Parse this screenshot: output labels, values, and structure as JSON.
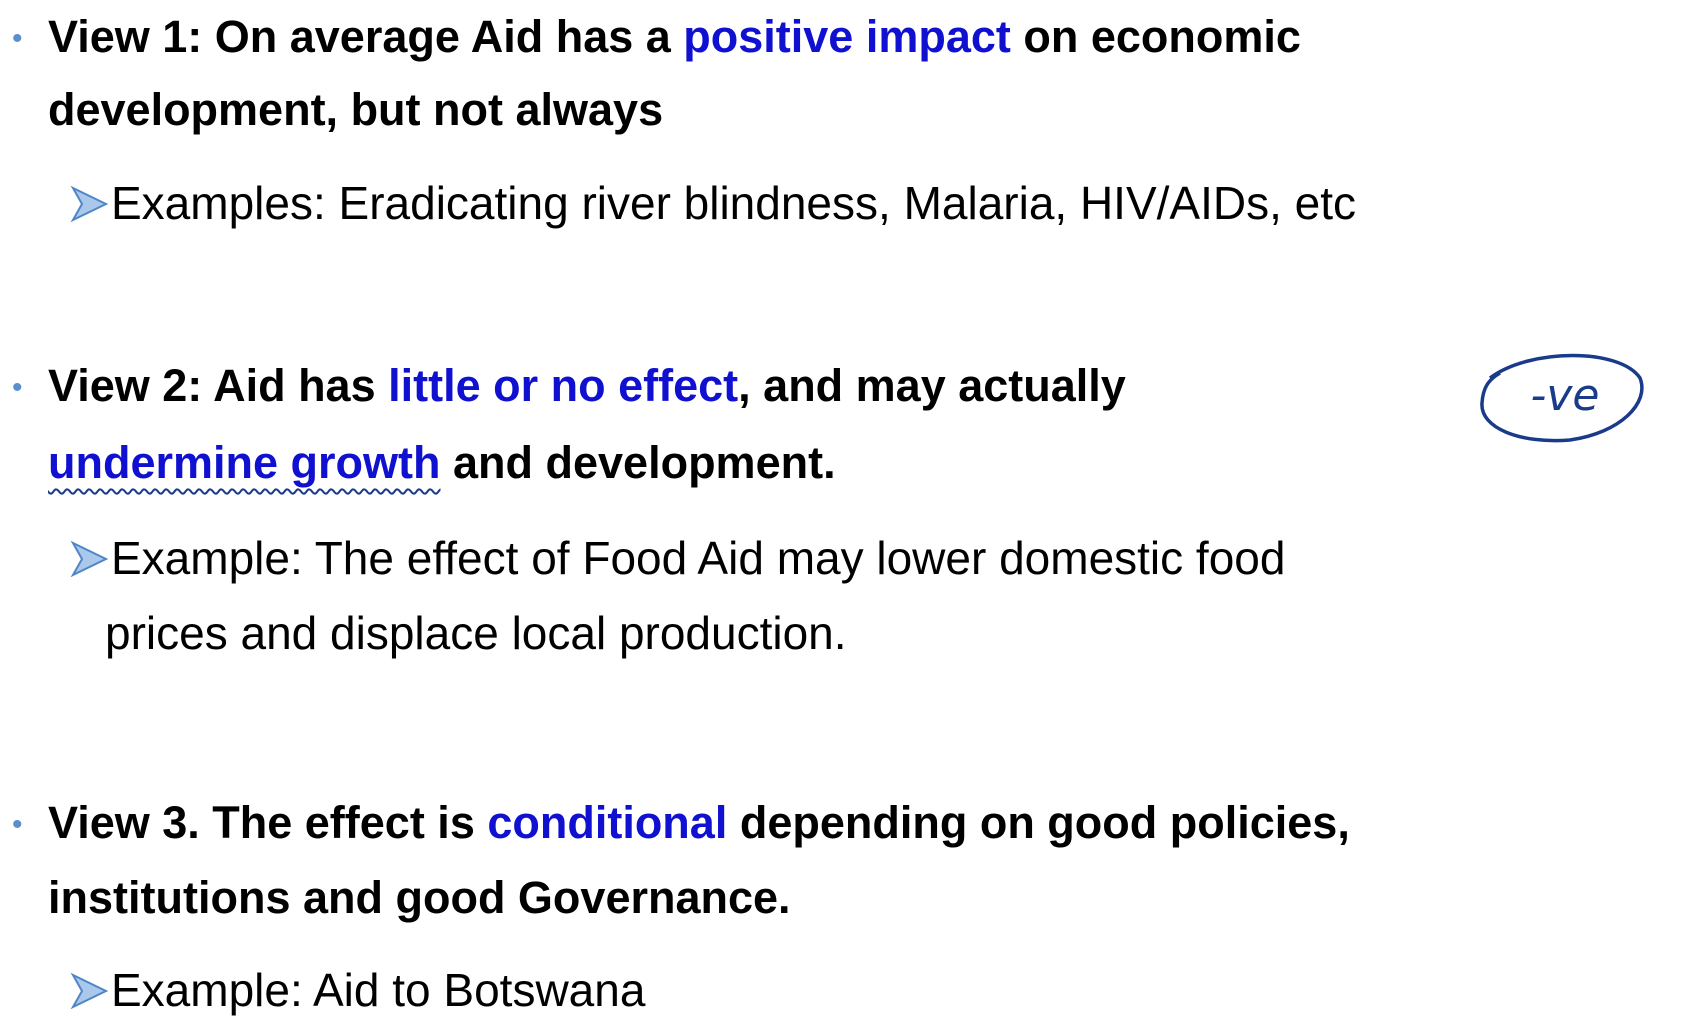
{
  "points": [
    {
      "lines": [
        [
          {
            "text": "View 1: On average Aid has a ",
            "emphasis": false
          },
          {
            "text": "positive impact",
            "emphasis": true
          },
          {
            "text": " on economic",
            "emphasis": false
          }
        ],
        [
          {
            "text": "development, but not always",
            "emphasis": false
          }
        ]
      ],
      "example": [
        "Examples: Eradicating river blindness, Malaria, HIV/AIDs, etc"
      ]
    },
    {
      "lines": [
        [
          {
            "text": "View 2: Aid has ",
            "emphasis": false
          },
          {
            "text": "little or no effect",
            "emphasis": true
          },
          {
            "text": ", and may actually",
            "emphasis": false
          }
        ],
        [
          {
            "text": "undermine growth",
            "emphasis": true,
            "underlined": true
          },
          {
            "text": " and development.",
            "emphasis": false
          }
        ]
      ],
      "example": [
        "Example: The effect of Food Aid may lower domestic food",
        "prices and displace local production."
      ]
    },
    {
      "lines": [
        [
          {
            "text": "View 3. The effect is ",
            "emphasis": false
          },
          {
            "text": "conditional",
            "emphasis": true
          },
          {
            "text": " depending on good policies,",
            "emphasis": false
          }
        ],
        [
          {
            "text": "institutions and good Governance.",
            "emphasis": false
          }
        ]
      ],
      "example": [
        "Example: Aid to Botswana"
      ]
    }
  ],
  "annotation": "-ve"
}
